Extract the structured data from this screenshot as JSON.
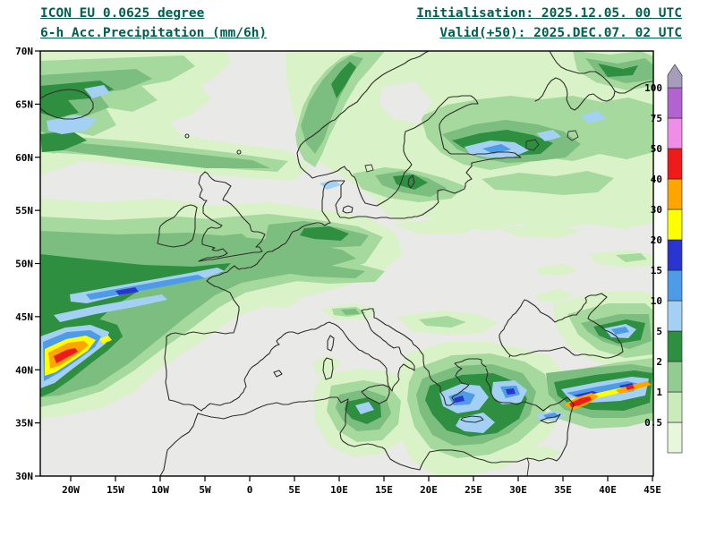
{
  "header": {
    "model_line": "ICON EU 0.0625 degree",
    "param_line": "6-h Acc.Precipitation (mm/6h)",
    "init_line": "Initialisation: 2025.12.05. 00 UTC",
    "valid_line": "Valid(+50): 2025.DEC.07. 02 UTC",
    "text_color": "#005f50"
  },
  "map": {
    "lat_labels": [
      "70N",
      "65N",
      "60N",
      "55N",
      "50N",
      "45N",
      "40N",
      "35N",
      "30N"
    ],
    "lon_labels": [
      "20W",
      "15W",
      "10W",
      "5W",
      "0",
      "5E",
      "10E",
      "15E",
      "20E",
      "25E",
      "30E",
      "35E",
      "40E",
      "45E"
    ],
    "background": "#e9e9e7",
    "coastline_color": "#30302a",
    "frame_color": "#000000"
  },
  "colorbar": {
    "unit_values_bottom_to_top": [
      "0.5",
      "1",
      "2",
      "5",
      "10",
      "15",
      "20",
      "30",
      "40",
      "50",
      "75",
      "100"
    ],
    "segment_colors_bottom_to_top": [
      "#e6f7db",
      "#c9ecba",
      "#93cc92",
      "#2e8f41",
      "#a4d1f3",
      "#4e9ce8",
      "#2a35cf",
      "#ffff00",
      "#ffa500",
      "#ef1a1a",
      "#ee8ee6",
      "#b164d0",
      "#a69dbb"
    ]
  },
  "palette": {
    "p05": "#d9f2c8",
    "p1": "#a6d99d",
    "p2": "#7cbd80",
    "p5": "#2e8f41",
    "b5": "#a4d1f3",
    "b10": "#4e9ce8",
    "b15": "#2a35cf",
    "y20": "#ffff00",
    "o30": "#ffa500",
    "r40": "#ef1a1a",
    "bg": "#e9e9e7"
  }
}
